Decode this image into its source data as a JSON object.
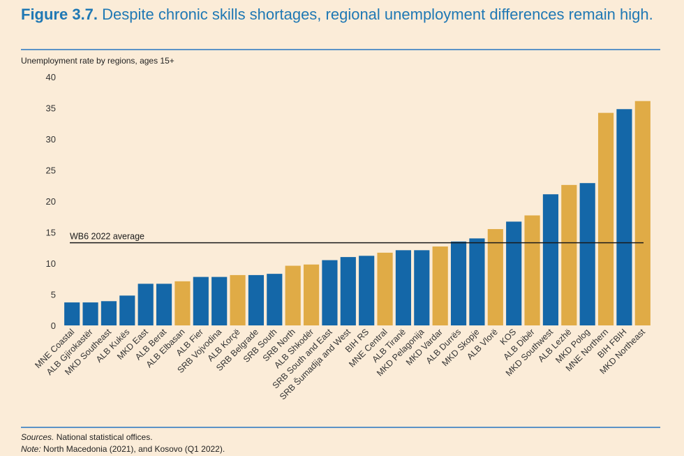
{
  "header": {
    "figure_label": "Figure 3.7.",
    "title": "Despite chronic skills shortages, regional unemployment differences remain high."
  },
  "chart_data": {
    "type": "bar",
    "title": "",
    "ylabel": "Unemployment rate by regions, ages 15+",
    "xlabel": "",
    "ylim": [
      0,
      40
    ],
    "yticks": [
      0,
      5,
      10,
      15,
      20,
      25,
      30,
      35,
      40
    ],
    "grid": false,
    "categories": [
      "MNE Coastal",
      "ALB Gjirokastër",
      "MKD Southeast",
      "ALB Kukës",
      "MKD East",
      "ALB Berat",
      "ALB Elbasan",
      "ALB Fier",
      "SRB Vojvodina",
      "ALB Korçë",
      "SRB Belgrade",
      "SRB South",
      "SRB North",
      "ALB Shkodër",
      "SRB South and East",
      "SRB Šumadija and West",
      "BIH RS",
      "MNE Central",
      "ALB Tiranë",
      "MKD Pelagonija",
      "MKD Vardar",
      "ALB Durrës",
      "MKD Skopje",
      "ALB Vlorë",
      "KOS",
      "ALB Dibër",
      "MKD Southwest",
      "ALB Lezhë",
      "MKD Polog",
      "MNE Northern",
      "BIH FBIH",
      "MKD Northeast"
    ],
    "values": [
      3.7,
      3.7,
      3.9,
      4.8,
      6.7,
      6.7,
      7.1,
      7.8,
      7.8,
      8.1,
      8.1,
      8.3,
      9.6,
      9.8,
      10.5,
      11.0,
      11.2,
      11.7,
      12.1,
      12.1,
      12.7,
      13.5,
      14.0,
      15.5,
      16.7,
      17.7,
      21.1,
      22.6,
      22.9,
      34.2,
      34.8,
      36.1
    ],
    "highlighted": [
      false,
      false,
      false,
      false,
      false,
      false,
      true,
      false,
      false,
      true,
      false,
      false,
      true,
      true,
      false,
      false,
      false,
      true,
      false,
      false,
      true,
      false,
      false,
      true,
      false,
      true,
      false,
      true,
      false,
      true,
      false,
      true
    ],
    "colors": {
      "default": "#1467a8",
      "highlight": "#e0ab46",
      "reference_line": "#1a1a1a",
      "axis_text": "#333333"
    },
    "reference_line": {
      "value": 13.3,
      "label": "WB6 2022 average"
    }
  },
  "footer": {
    "sources_label": "Sources.",
    "sources_text": " National statistical offices.",
    "note_label": "Note:",
    "note_text": " North Macedonia (2021), and Kosovo (Q1 2022)."
  }
}
